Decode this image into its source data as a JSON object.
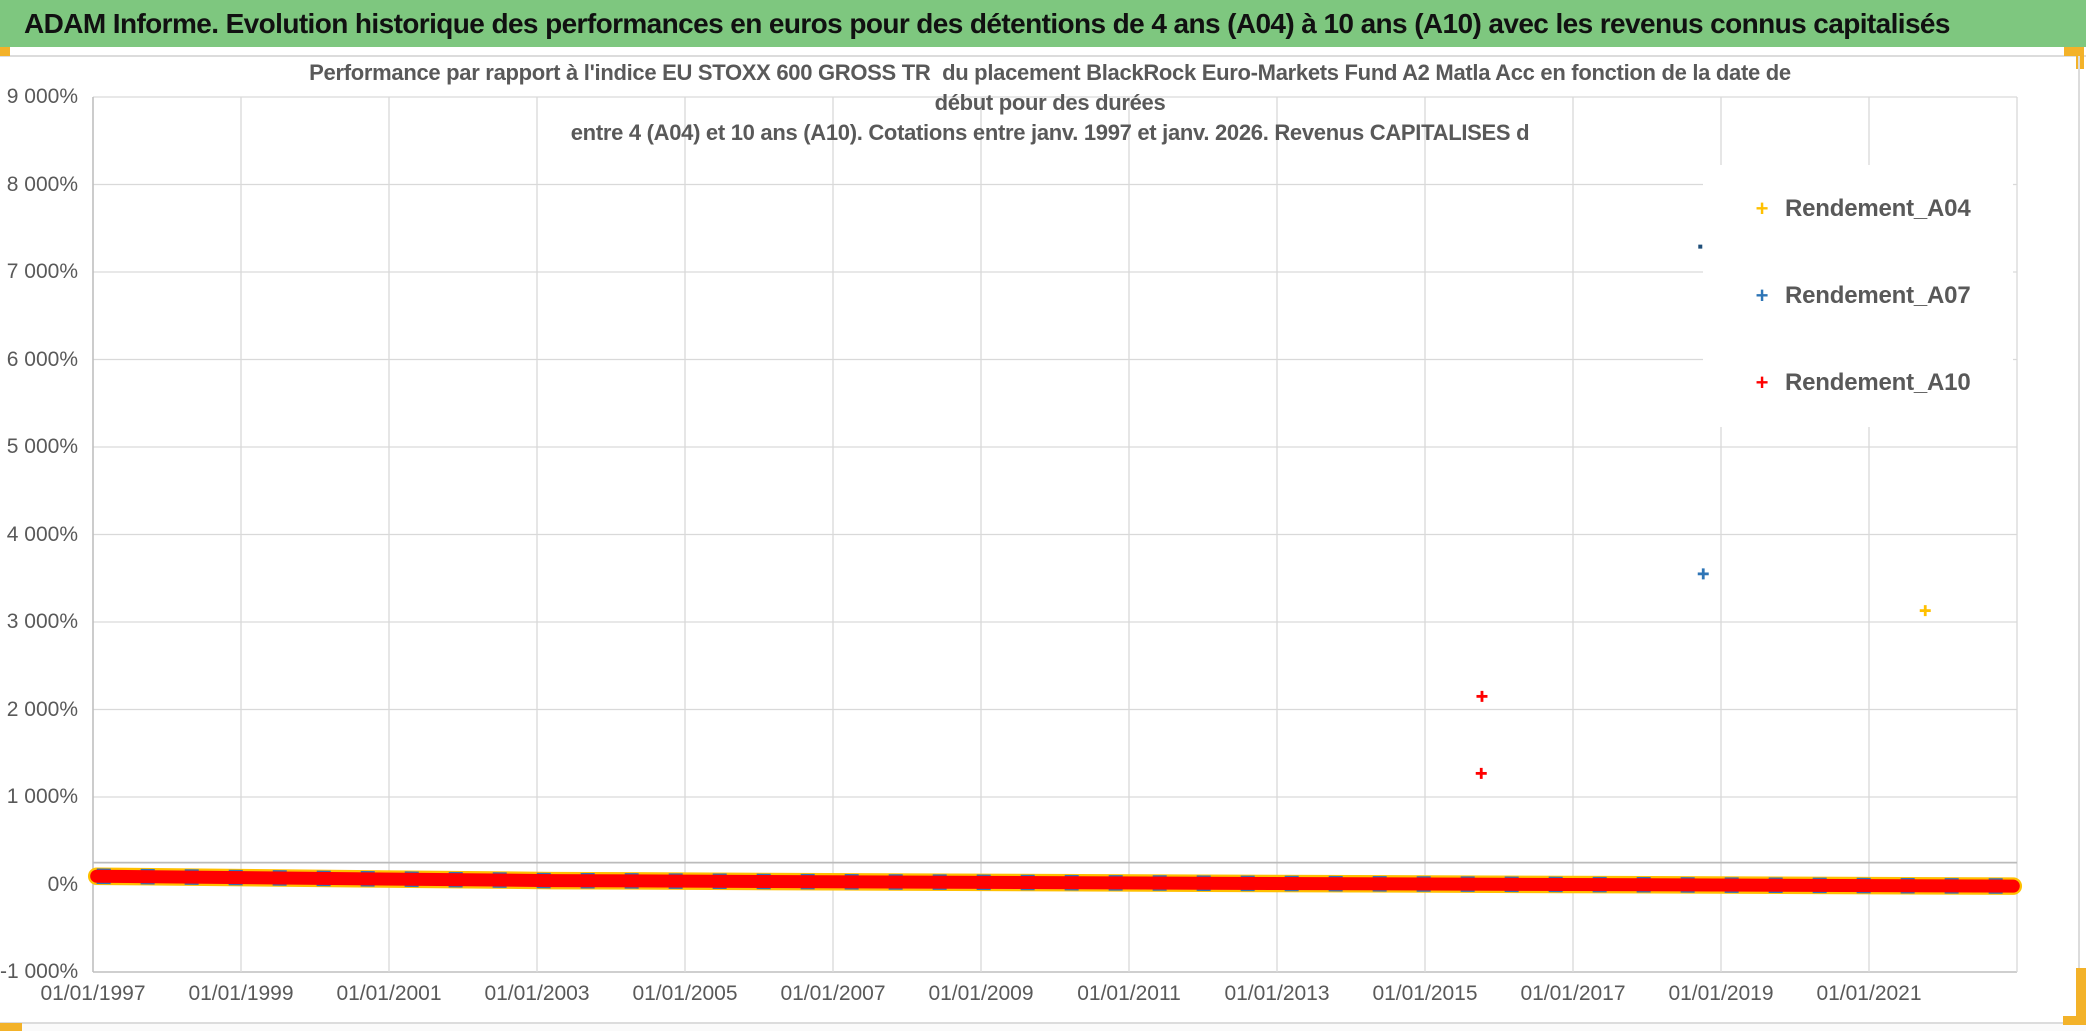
{
  "header": {
    "title": "ADAM Informe. Evolution historique des performances en euros pour des détentions de 4 ans (A04) à 10 ans (A10) avec les revenus connus capitalisés"
  },
  "chart_data": {
    "type": "scatter",
    "title_lines": [
      "Performance par rapport à l'indice EU STOXX 600 GROSS TR  du placement BlackRock Euro-Markets Fund A2 Matla Acc en fonction de la date de",
      "début pour des durées",
      "entre 4 (A04) et 10 ans (A10). Cotations entre janv. 1997 et janv. 2026. Revenus CAPITALISES d"
    ],
    "x_axis": {
      "tick_labels": [
        "01/01/1997",
        "01/01/1999",
        "01/01/2001",
        "01/01/2003",
        "01/01/2005",
        "01/01/2007",
        "01/01/2009",
        "01/01/2011",
        "01/01/2013",
        "01/01/2015",
        "01/01/2017",
        "01/01/2019",
        "01/01/2021"
      ],
      "tick_years": [
        1997,
        1999,
        2001,
        2003,
        2005,
        2007,
        2009,
        2011,
        2013,
        2015,
        2017,
        2019,
        2021
      ],
      "gridline_years": [
        1997,
        1999,
        2001,
        2003,
        2005,
        2007,
        2009,
        2011,
        2013,
        2015,
        2017,
        2019,
        2021,
        2023
      ],
      "range_years": [
        1997,
        2023
      ]
    },
    "y_axis": {
      "tick_labels": [
        "9 000%",
        "8 000%",
        "7 000%",
        "6 000%",
        "5 000%",
        "4 000%",
        "3 000%",
        "2 000%",
        "1 000%",
        "0%",
        "-1 000%"
      ],
      "tick_values": [
        9000,
        8000,
        7000,
        6000,
        5000,
        4000,
        3000,
        2000,
        1000,
        0,
        -1000
      ],
      "range_pct": [
        -1000,
        9000
      ],
      "extra_line_value_pct": 250
    },
    "grid": "on",
    "legend_position": "right-inside",
    "series": [
      {
        "name": "Rendement_A04",
        "color": "#FFC000",
        "marker": "plus",
        "outlier_points": [
          {
            "year": 2021.76,
            "value_pct": 3130,
            "style": "plus"
          }
        ]
      },
      {
        "name": "Rendement_A07",
        "color": "#2E75B6",
        "marker": "plus",
        "outlier_points": [
          {
            "year": 2018.72,
            "value_pct": 7290,
            "style": "dot"
          },
          {
            "year": 2018.76,
            "value_pct": 3550,
            "style": "plus"
          }
        ]
      },
      {
        "name": "Rendement_A10",
        "color": "#FF0000",
        "marker": "plus",
        "outlier_points": [
          {
            "year": 2015.77,
            "value_pct": 2150,
            "style": "plus"
          },
          {
            "year": 2015.76,
            "value_pct": 1270,
            "style": "plus"
          }
        ]
      }
    ],
    "dense_band": {
      "description": "Dense overlapping cluster of A04/A07/A10 points hugging 0% for all start dates 1997-2023",
      "path": [
        {
          "year": 1997.05,
          "value_pct": 95
        },
        {
          "year": 2003.2,
          "value_pct": 45
        },
        {
          "year": 2012.0,
          "value_pct": 15
        },
        {
          "year": 2022.95,
          "value_pct": -18
        }
      ],
      "thickness_pct": 150,
      "main_color": "#FF0000",
      "fringe_colors": [
        "#FFC000",
        "#2E75B6"
      ]
    },
    "colors": {
      "gridline": "#D9D9D9",
      "axis_line": "#BFBFBF",
      "text": "#595959"
    }
  },
  "legend": {
    "items": [
      {
        "label": "Rendement_A04",
        "color": "#FFC000"
      },
      {
        "label": "Rendement_A07",
        "color": "#2E75B6"
      },
      {
        "label": "Rendement_A10",
        "color": "#FF0000"
      }
    ]
  },
  "chrome": {
    "header_bg": "#7EC77F",
    "accent_color": "#F3B229"
  }
}
